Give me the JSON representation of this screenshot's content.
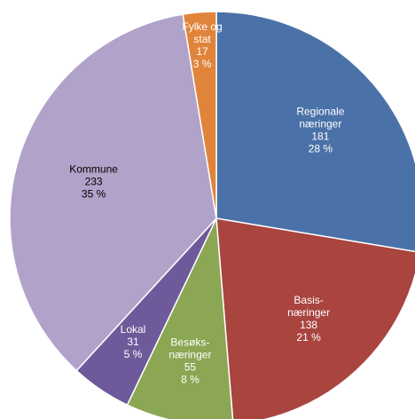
{
  "chart_data": {
    "type": "pie",
    "categories": [
      "Regionale\nnæringer",
      "Basis-\nnæringer",
      "Besøks-\nnæringer",
      "Lokal",
      "Kommune",
      "Fylke og\nstat"
    ],
    "values": [
      181,
      138,
      55,
      31,
      233,
      17
    ],
    "percentages": [
      28,
      21,
      8,
      5,
      35,
      3
    ],
    "percentage_labels": [
      "28 %",
      "21 %",
      "8 %",
      "5 %",
      "35 %",
      "3 %"
    ],
    "colors": [
      "#4a72a8",
      "#a9443f",
      "#8ba753",
      "#6e5a9a",
      "#b1a2c9",
      "#e0843c"
    ],
    "label_colors": [
      "#ffffff",
      "#ffffff",
      "#ffffff",
      "#ffffff",
      "#000000",
      "#ffffff"
    ]
  }
}
